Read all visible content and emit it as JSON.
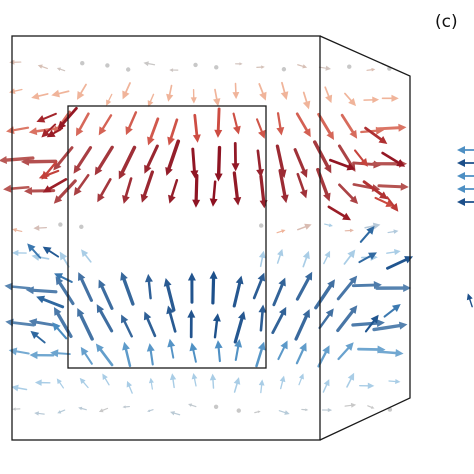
{
  "panel_label": "(c)",
  "colors": {
    "frame": "#1a1a1a",
    "up_dark": "#1c4f8a",
    "up_mid": "#4d8fc3",
    "up_light": "#a9cde6",
    "down_dark": "#8c1020",
    "down_mid": "#cc4a40",
    "down_light": "#f0b49a",
    "neutral": "#c8c8c8"
  },
  "icons": [
    "up-arrow-icon",
    "down-arrow-icon",
    "dot-icon"
  ]
}
